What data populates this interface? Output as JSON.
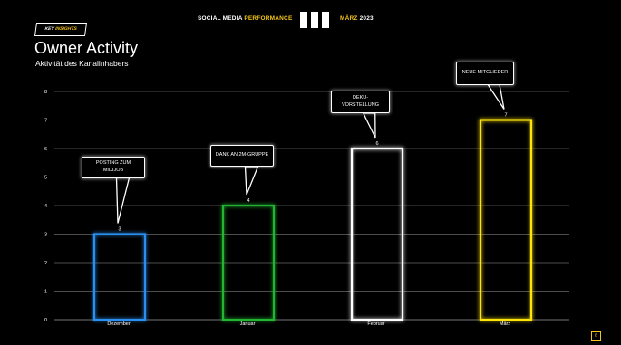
{
  "header": {
    "title_part1": "SOCIAL MEDIA ",
    "title_part2": "PERFORMANCE",
    "date_part1": "MÄRZ",
    "date_part2": " 2023"
  },
  "badge": {
    "part1": "KEY ",
    "part2": "INSIGHTS"
  },
  "page_title": "Owner Activity",
  "page_subtitle": "Aktivität des Kanalinhabers",
  "page_number": "6",
  "colors": {
    "accent": "#f5c518",
    "grid": "#9a9a9a",
    "background": "#000000"
  },
  "chart_data": {
    "type": "bar",
    "title": "",
    "xlabel": "",
    "ylabel": "",
    "categories": [
      "Dezember",
      "Januar",
      "Februar",
      "März"
    ],
    "values": [
      3,
      4,
      6,
      7
    ],
    "bar_colors": [
      "#2a8ff0",
      "#21b531",
      "#ffffff",
      "#ffe40a"
    ],
    "ylim": [
      0,
      8
    ],
    "yticks": [
      0,
      1,
      2,
      3,
      4,
      5,
      6,
      7,
      8
    ],
    "grid": true,
    "data_labels": true,
    "annotations": [
      {
        "category": "Dezember",
        "text": "POSTING ZUM MIDIJOB"
      },
      {
        "category": "Januar",
        "text": "DANK AN 2M-GRUPPE"
      },
      {
        "category": "Februar",
        "text": "DEKU-VORSTELLUNG"
      },
      {
        "category": "März",
        "text": "NEUE MITGLIEDER"
      }
    ]
  }
}
